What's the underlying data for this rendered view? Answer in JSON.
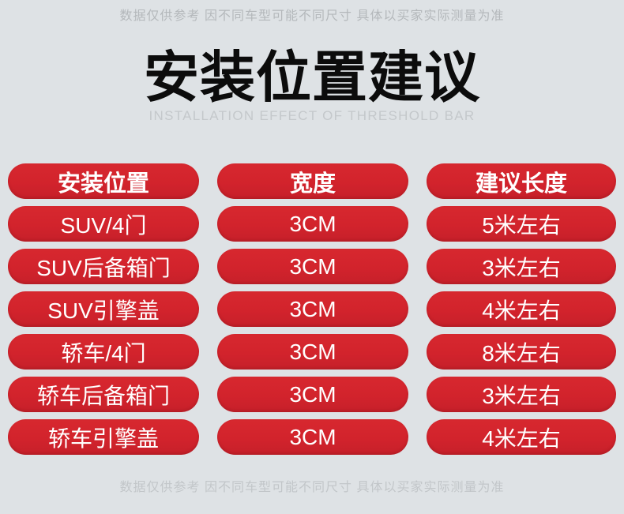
{
  "page": {
    "top_disclaimer": "数据仅供参考 因不同车型可能不同尺寸 具体以买家实际测量为准",
    "title": "安装位置建议",
    "subtitle": "INSTALLATION EFFECT OF THRESHOLD BAR",
    "bottom_disclaimer": "数据仅供参考 因不同车型可能不同尺寸 具体以买家实际测量为准"
  },
  "table": {
    "headers": [
      "安装位置",
      "宽度",
      "建议长度"
    ],
    "rows": [
      [
        "SUV/4门",
        "3CM",
        "5米左右"
      ],
      [
        "SUV后备箱门",
        "3CM",
        "3米左右"
      ],
      [
        "SUV引擎盖",
        "3CM",
        "4米左右"
      ],
      [
        "轿车/4门",
        "3CM",
        "8米左右"
      ],
      [
        "轿车后备箱门",
        "3CM",
        "3米左右"
      ],
      [
        "轿车引擎盖",
        "3CM",
        "4米左右"
      ]
    ]
  },
  "chart_data": {
    "type": "table",
    "title": "安装位置建议",
    "subtitle": "INSTALLATION EFFECT OF THRESHOLD BAR",
    "columns": [
      "安装位置",
      "宽度",
      "建议长度"
    ],
    "rows": [
      {
        "安装位置": "SUV/4门",
        "宽度": "3CM",
        "建议长度": "5米左右"
      },
      {
        "安装位置": "SUV后备箱门",
        "宽度": "3CM",
        "建议长度": "3米左右"
      },
      {
        "安装位置": "SUV引擎盖",
        "宽度": "3CM",
        "建议长度": "4米左右"
      },
      {
        "安装位置": "轿车/4门",
        "宽度": "3CM",
        "建议长度": "8米左右"
      },
      {
        "安装位置": "轿车后备箱门",
        "宽度": "3CM",
        "建议长度": "3米左右"
      },
      {
        "安装位置": "轿车引擎盖",
        "宽度": "3CM",
        "建议长度": "4米左右"
      }
    ],
    "notes": "数据仅供参考 因不同车型可能不同尺寸 具体以买家实际测量为准"
  },
  "colors": {
    "pill_red": "#d2232c",
    "background": "#dee2e5",
    "pill_text": "#ffffff",
    "title_black": "#0c0c0c",
    "disclaimer_gray": "#b4b8bb",
    "subtitle_gray": "#c4c8cb"
  }
}
